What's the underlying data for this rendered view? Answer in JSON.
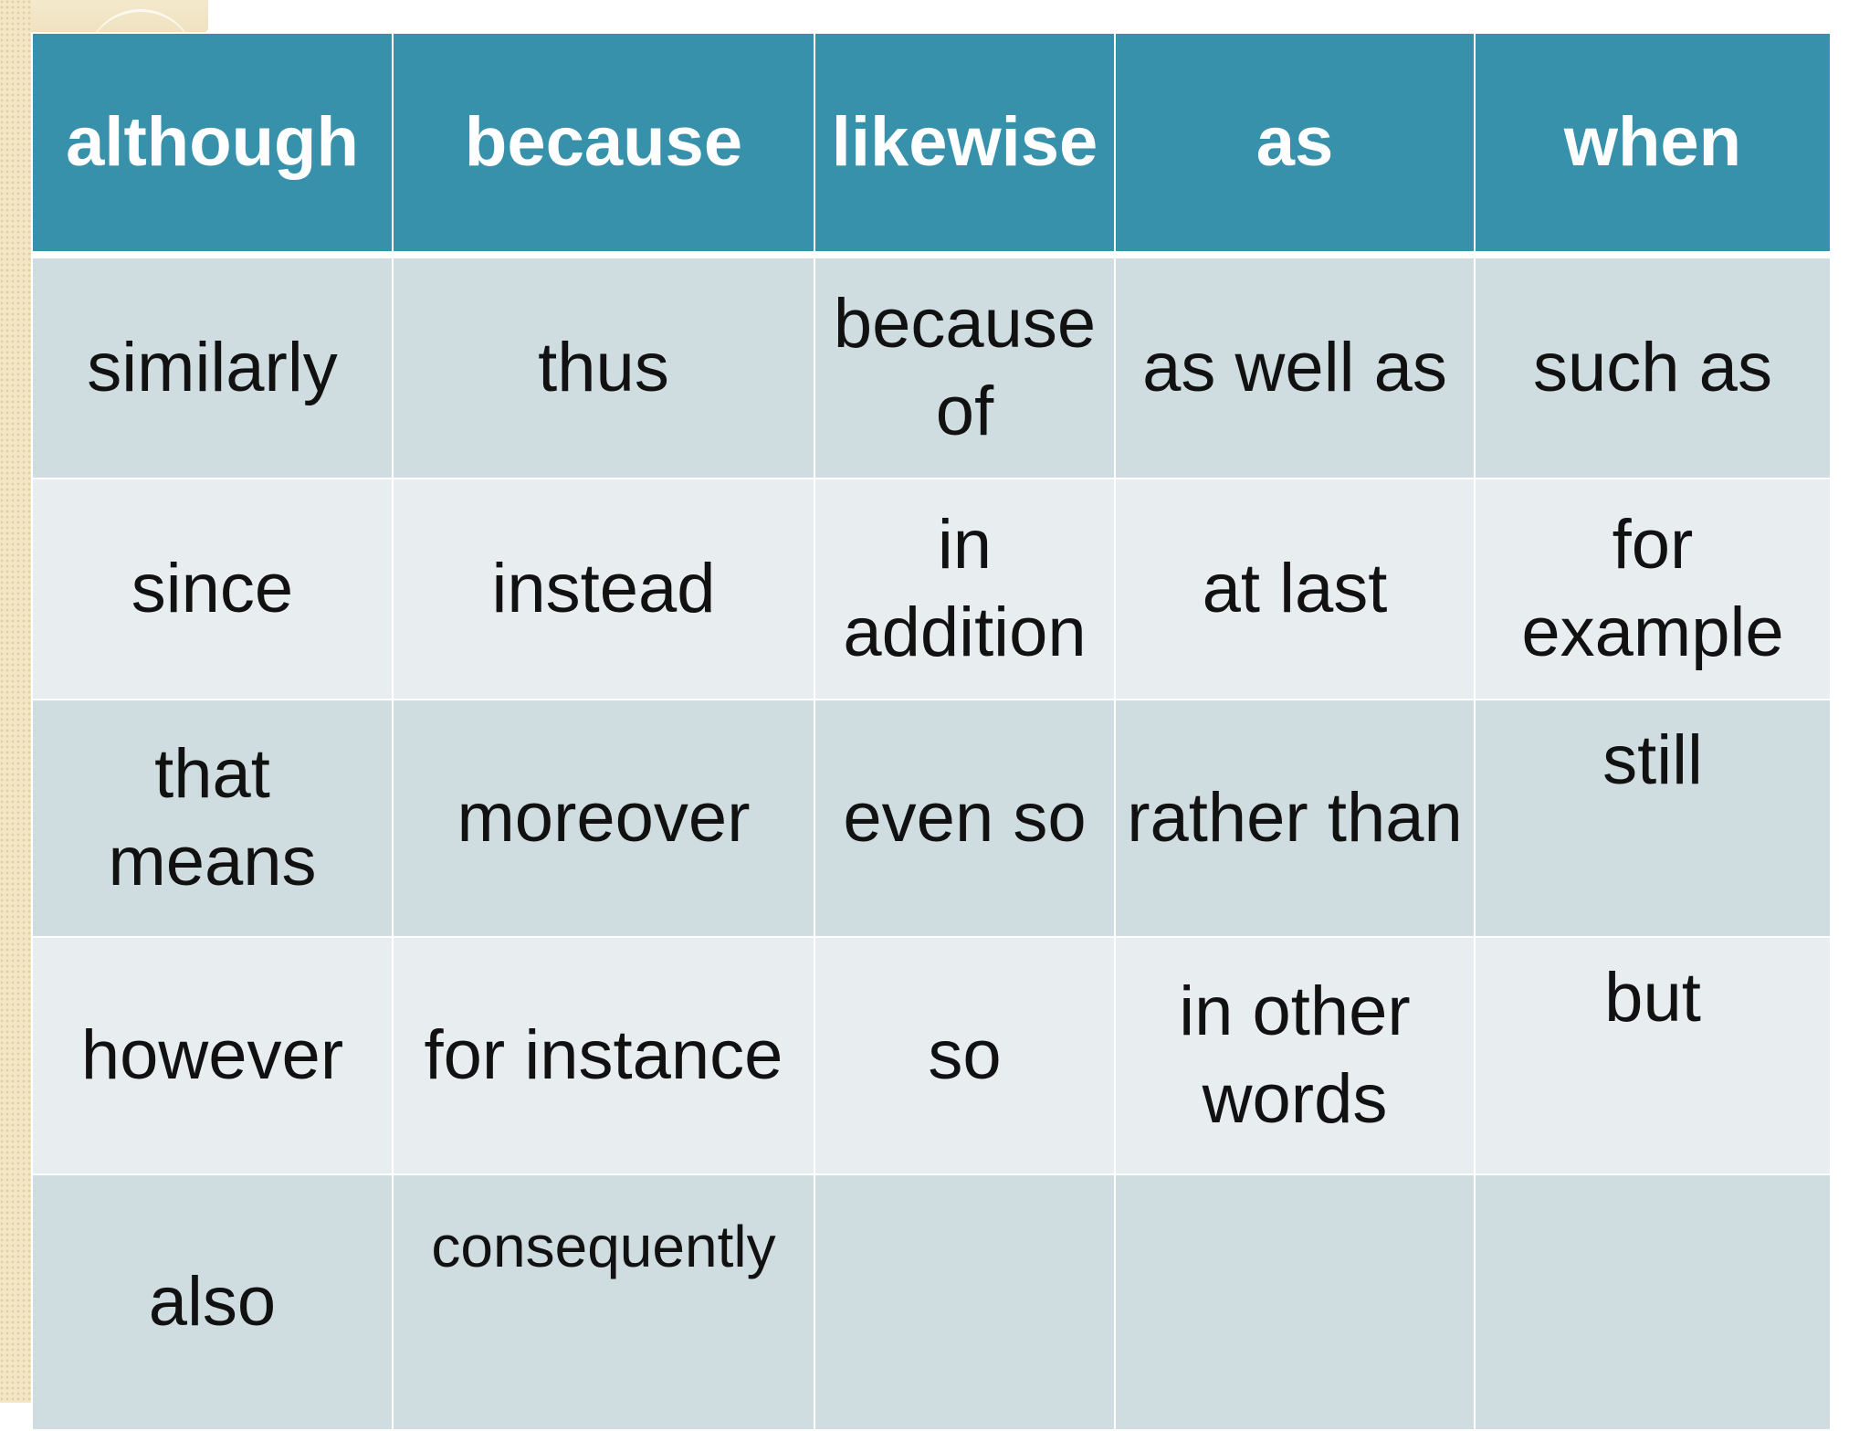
{
  "table": {
    "header": [
      "although",
      "because",
      "likewise",
      "as",
      "when"
    ],
    "rows": [
      [
        "similarly",
        "thus",
        "because of",
        "as well as",
        "such as"
      ],
      [
        "since",
        "instead",
        "in addition",
        "at last",
        "for example"
      ],
      [
        "that means",
        "moreover",
        "even so",
        "rather than",
        "still"
      ],
      [
        "however",
        "for instance",
        "so",
        "in other words",
        "but"
      ],
      [
        "also",
        "consequently",
        "",
        "",
        ""
      ]
    ]
  }
}
